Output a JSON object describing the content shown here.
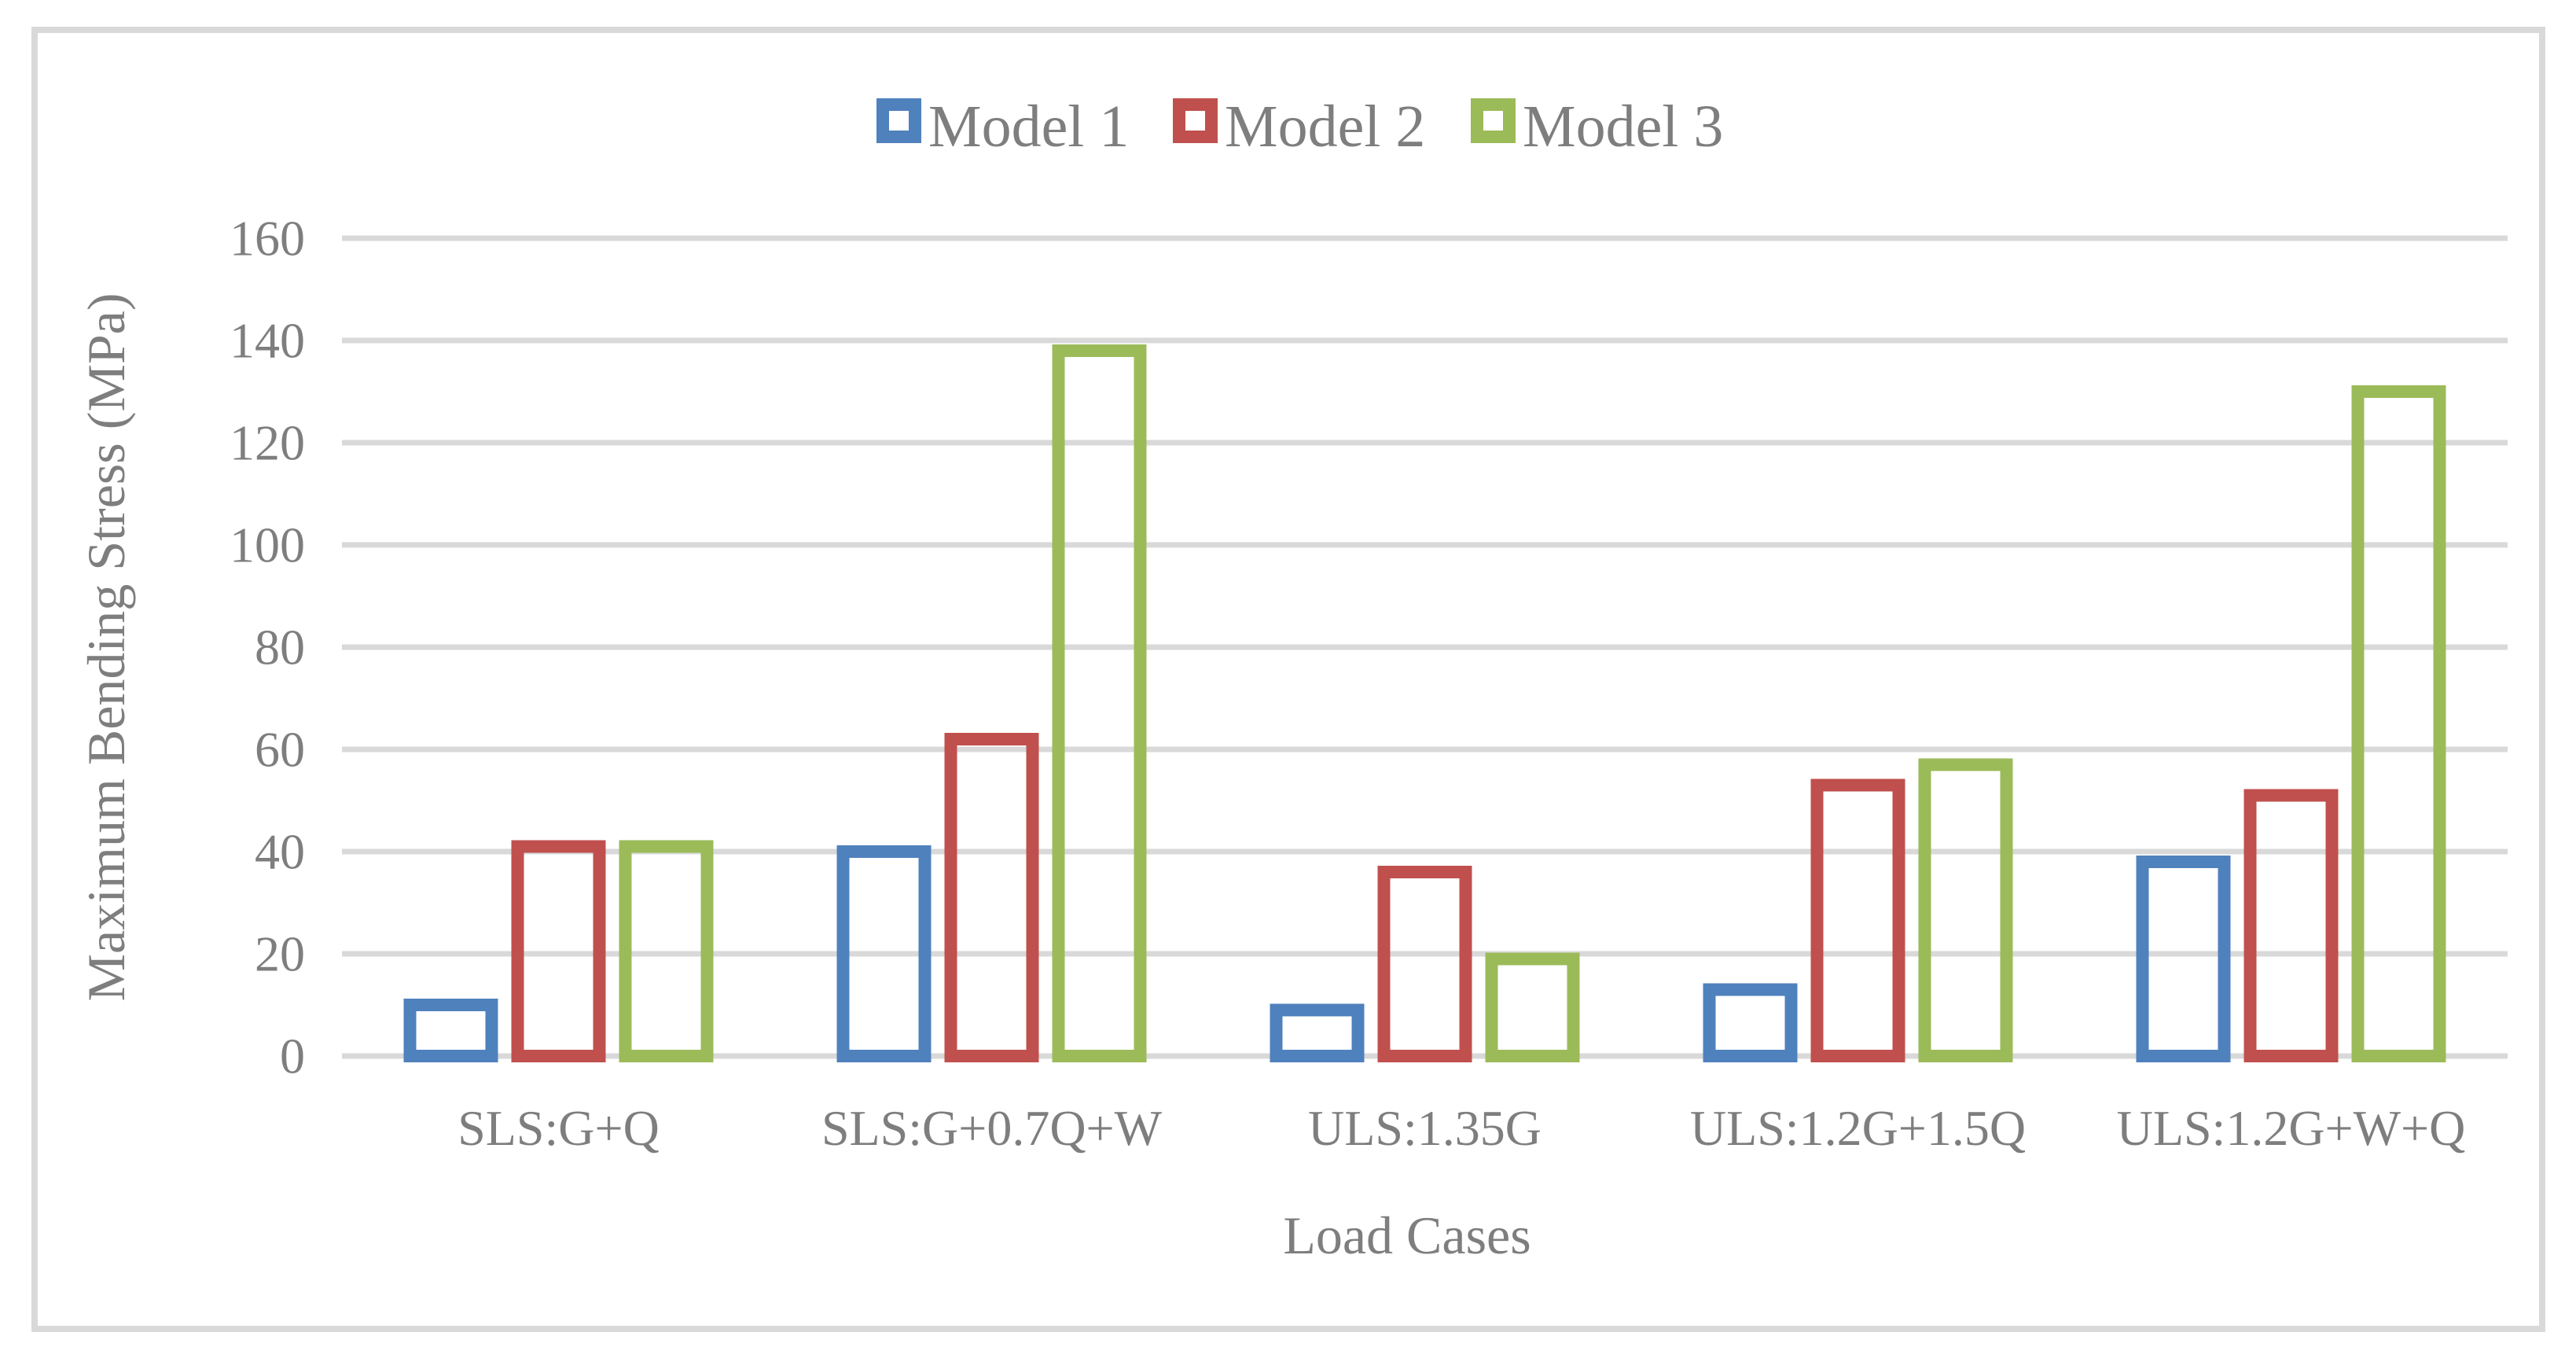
{
  "chart_data": {
    "type": "bar",
    "title": "",
    "categories": [
      "SLS:G+Q",
      "SLS:G+0.7Q+W",
      "ULS:1.35G",
      "ULS:1.2G+1.5Q",
      "ULS:1.2G+W+Q"
    ],
    "series": [
      {
        "name": "Model 1",
        "color": "#4F81BD",
        "values": [
          10,
          40,
          9,
          13,
          38
        ]
      },
      {
        "name": "Model 2",
        "color": "#C0504D",
        "values": [
          41,
          62,
          36,
          53,
          51
        ]
      },
      {
        "name": "Model 3",
        "color": "#9BBB59",
        "values": [
          41,
          138,
          19,
          57,
          130
        ]
      }
    ],
    "xlabel": "Load Cases",
    "ylabel": "Maximum Bending Stress (MPa)",
    "ylim": [
      0,
      160
    ],
    "ytick_step": 20,
    "ytick_labels": [
      "0",
      "20",
      "40",
      "60",
      "80",
      "100",
      "120",
      "140",
      "160"
    ],
    "grid": true,
    "legend_position": "top-center",
    "bar_style": "hollow-outline",
    "colors": {
      "grid": "#D9D9D9",
      "frame": "#D9D9D9",
      "text": "#7E7E7E",
      "background": "#FFFFFF"
    }
  }
}
